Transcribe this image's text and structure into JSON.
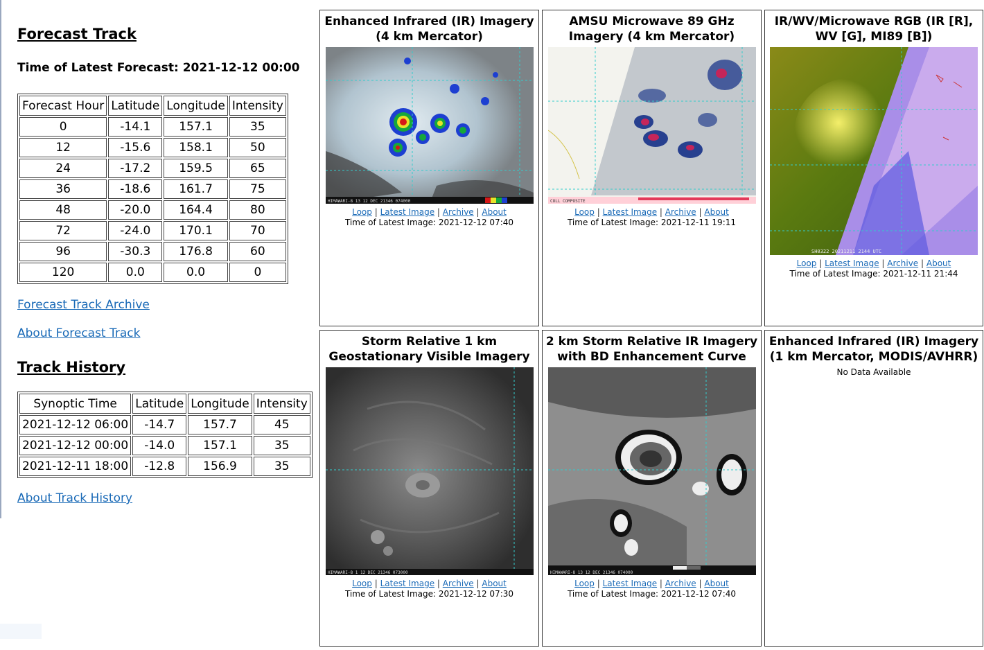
{
  "forecast": {
    "heading": "Forecast Track",
    "latest_label": "Time of Latest Forecast: 2021-12-12 00:00",
    "columns": [
      "Forecast Hour",
      "Latitude",
      "Longitude",
      "Intensity"
    ],
    "rows": [
      [
        "0",
        "-14.1",
        "157.1",
        "35"
      ],
      [
        "12",
        "-15.6",
        "158.1",
        "50"
      ],
      [
        "24",
        "-17.2",
        "159.5",
        "65"
      ],
      [
        "36",
        "-18.6",
        "161.7",
        "75"
      ],
      [
        "48",
        "-20.0",
        "164.4",
        "80"
      ],
      [
        "72",
        "-24.0",
        "170.1",
        "70"
      ],
      [
        "96",
        "-30.3",
        "176.8",
        "60"
      ],
      [
        "120",
        "0.0",
        "0.0",
        "0"
      ]
    ],
    "archive_link": "Forecast Track Archive",
    "about_link": "About Forecast Track"
  },
  "history": {
    "heading": "Track History",
    "columns": [
      "Synoptic Time",
      "Latitude",
      "Longitude",
      "Intensity"
    ],
    "rows": [
      [
        "2021-12-12 06:00",
        "-14.7",
        "157.7",
        "45"
      ],
      [
        "2021-12-12 00:00",
        "-14.0",
        "157.1",
        "35"
      ],
      [
        "2021-12-11 18:00",
        "-12.8",
        "156.9",
        "35"
      ]
    ],
    "about_link": "About Track History"
  },
  "links": {
    "loop": "Loop",
    "latest": "Latest Image",
    "archive": "Archive",
    "about": "About",
    "sep": "|"
  },
  "panels": [
    {
      "title": "Enhanced Infrared (IR) Imagery (4 km Mercator)",
      "time": "Time of Latest Image: 2021-12-12 07:40",
      "caption": "HIMAWARI-8 13 12 DEC 21346 074000",
      "image": "ir-4km"
    },
    {
      "title": "AMSU Microwave 89 GHz Imagery (4 km Mercator)",
      "time": "Time of Latest Image: 2021-12-11 19:11",
      "caption": "COLL COMPOSITE",
      "image": "amsu"
    },
    {
      "title": "IR/WV/Microwave RGB (IR [R], WV [G], MI89 [B])",
      "time": "Time of Latest Image: 2021-12-11 21:44",
      "caption": "SH0322 20211211 2144 UTC",
      "image": "rgb"
    },
    {
      "title": "Storm Relative 1 km Geostationary Visible Imagery",
      "time": "Time of Latest Image: 2021-12-12 07:30",
      "caption": "HIMAWARI-8 1 12 DEC 21346 073000",
      "image": "vis"
    },
    {
      "title": "2 km Storm Relative IR Imagery with BD Enhancement Curve",
      "time": "Time of Latest Image: 2021-12-12 07:40",
      "caption": "HIMAWARI-8 13 12 DEC 21346 074000",
      "image": "bd"
    },
    {
      "title": "Enhanced Infrared (IR) Imagery (1 km Mercator, MODIS/AVHRR)",
      "nodata": "No Data Available"
    }
  ]
}
